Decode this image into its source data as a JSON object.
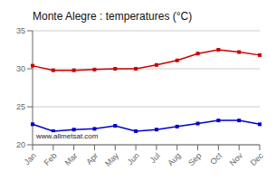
{
  "chart_data": {
    "type": "line",
    "title": "Monte Alegre : temperatures (°C)",
    "categories": [
      "Jan",
      "Feb",
      "Mar",
      "Apr",
      "May",
      "Jun",
      "Jul",
      "Aug",
      "Sep",
      "Oct",
      "Nov",
      "Dec"
    ],
    "series": [
      {
        "color": "#cc0000",
        "marker": "square",
        "values": [
          30.4,
          29.8,
          29.8,
          29.9,
          30.0,
          30.0,
          30.5,
          31.1,
          32.0,
          32.5,
          32.2,
          31.8
        ]
      },
      {
        "color": "#0000cc",
        "marker": "square",
        "values": [
          22.7,
          21.8,
          22.0,
          22.1,
          22.5,
          21.8,
          22.0,
          22.4,
          22.8,
          23.2,
          23.2,
          22.7
        ]
      }
    ],
    "ylim": [
      20,
      35
    ],
    "yticks": [
      20,
      25,
      30,
      35
    ],
    "grid": true,
    "annotations": [
      "www.allmetsat.com"
    ]
  }
}
